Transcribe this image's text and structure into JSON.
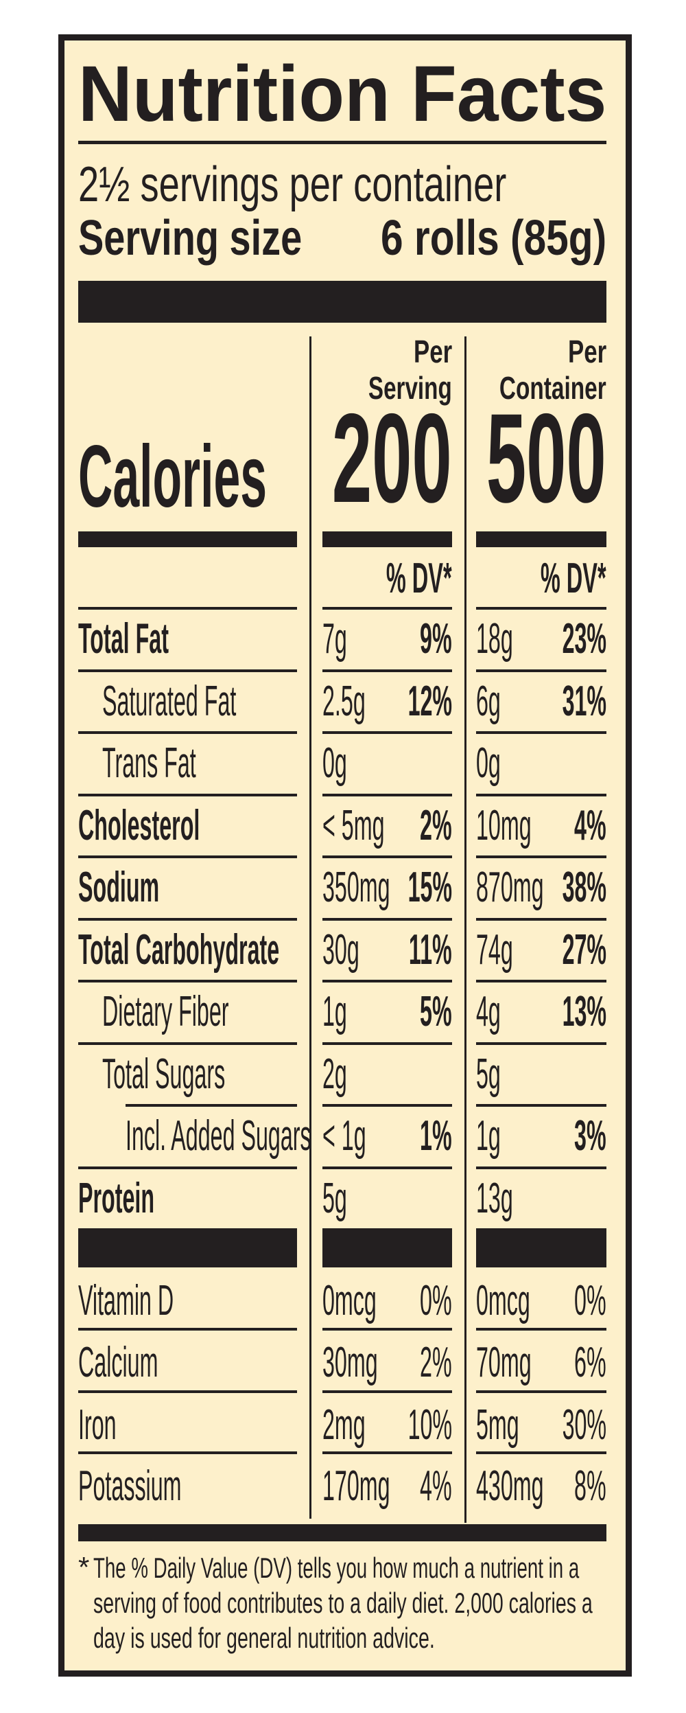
{
  "title": "Nutrition Facts",
  "servings_per_container": "2½ servings per container",
  "serving_size": {
    "label": "Serving size",
    "value": "6 rolls (85g)"
  },
  "columns": [
    {
      "line1": "Per",
      "line2": "Serving",
      "calories": "200",
      "dv_header": "% DV*"
    },
    {
      "line1": "Per",
      "line2": "Container",
      "calories": "500",
      "dv_header": "% DV*"
    }
  ],
  "calories_label": "Calories",
  "nutrients": [
    {
      "label": "Total Fat",
      "bold": true,
      "indent": 0,
      "serving": {
        "amount": "7g",
        "dv": "9%"
      },
      "container": {
        "amount": "18g",
        "dv": "23%"
      }
    },
    {
      "label": "Saturated Fat",
      "bold": false,
      "indent": 1,
      "serving": {
        "amount": "2.5g",
        "dv": "12%"
      },
      "container": {
        "amount": "6g",
        "dv": "31%"
      }
    },
    {
      "label": "Trans Fat",
      "bold": false,
      "indent": 1,
      "serving": {
        "amount": "0g",
        "dv": ""
      },
      "container": {
        "amount": "0g",
        "dv": ""
      }
    },
    {
      "label": "Cholesterol",
      "bold": true,
      "indent": 0,
      "serving": {
        "amount": "< 5mg",
        "dv": "2%"
      },
      "container": {
        "amount": "10mg",
        "dv": "4%"
      }
    },
    {
      "label": "Sodium",
      "bold": true,
      "indent": 0,
      "serving": {
        "amount": "350mg",
        "dv": "15%"
      },
      "container": {
        "amount": "870mg",
        "dv": "38%"
      }
    },
    {
      "label": "Total Carbohydrate",
      "bold": true,
      "indent": 0,
      "serving": {
        "amount": "30g",
        "dv": "11%"
      },
      "container": {
        "amount": "74g",
        "dv": "27%"
      }
    },
    {
      "label": "Dietary Fiber",
      "bold": false,
      "indent": 1,
      "serving": {
        "amount": "1g",
        "dv": "5%"
      },
      "container": {
        "amount": "4g",
        "dv": "13%"
      }
    },
    {
      "label": "Total Sugars",
      "bold": false,
      "indent": 1,
      "serving": {
        "amount": "2g",
        "dv": ""
      },
      "container": {
        "amount": "5g",
        "dv": ""
      }
    },
    {
      "label": "Incl. Added Sugars",
      "bold": false,
      "indent": 2,
      "serving": {
        "amount": "< 1g",
        "dv": "1%"
      },
      "container": {
        "amount": "1g",
        "dv": "3%"
      }
    },
    {
      "label": "Protein",
      "bold": true,
      "indent": 0,
      "serving": {
        "amount": "5g",
        "dv": ""
      },
      "container": {
        "amount": "13g",
        "dv": ""
      }
    }
  ],
  "vitamins": [
    {
      "label": "Vitamin D",
      "serving": {
        "amount": "0mcg",
        "dv": "0%"
      },
      "container": {
        "amount": "0mcg",
        "dv": "0%"
      }
    },
    {
      "label": "Calcium",
      "serving": {
        "amount": "30mg",
        "dv": "2%"
      },
      "container": {
        "amount": "70mg",
        "dv": "6%"
      }
    },
    {
      "label": "Iron",
      "serving": {
        "amount": "2mg",
        "dv": "10%"
      },
      "container": {
        "amount": "5mg",
        "dv": "30%"
      }
    },
    {
      "label": "Potassium",
      "serving": {
        "amount": "170mg",
        "dv": "4%"
      },
      "container": {
        "amount": "430mg",
        "dv": "8%"
      }
    }
  ],
  "footnote": {
    "asterisk": "*",
    "lines": [
      "The % Daily Value (DV) tells you how much a nutrient in a",
      "serving of food contributes to a daily diet. 2,000 calories a",
      "day is used for general nutrition advice."
    ]
  },
  "colors": {
    "background": "#fdf0cb",
    "ink": "#231f20"
  }
}
